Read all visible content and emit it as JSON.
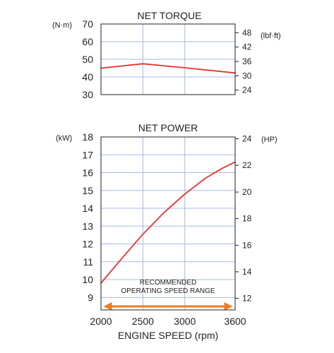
{
  "colors": {
    "grid": "#a9b8e3",
    "line": "#e8322e",
    "range_arrow": "#f07d1c",
    "plot_background": "#ffffff",
    "border": "#222222",
    "text": "#222222"
  },
  "chart_data": [
    {
      "type": "line",
      "title": "NET TORQUE",
      "xlabel": "",
      "left_unit": "(N·m)",
      "right_unit": "(lbf·ft)",
      "xlim": [
        2000,
        3600
      ],
      "ylim": [
        30,
        70
      ],
      "yticks": [
        30,
        40,
        50,
        60,
        70
      ],
      "right_axis": {
        "ticks": [
          "24",
          "30",
          "36",
          "42",
          "48"
        ],
        "values": [
          32.54,
          40.67,
          48.81,
          56.94,
          65.08
        ]
      },
      "x_gridlines": [
        2500,
        3000,
        3600
      ],
      "y_gridlines": [
        40,
        50,
        60
      ],
      "series": [
        {
          "x": [
            2000,
            2500,
            3000,
            3600
          ],
          "y": [
            45,
            47.5,
            45.2,
            42.3
          ]
        }
      ]
    },
    {
      "type": "line",
      "title": "NET POWER",
      "xlabel": "ENGINE SPEED (rpm)",
      "left_unit": "(kW)",
      "right_unit": "(HP)",
      "xlim": [
        2000,
        3600
      ],
      "xticks": [
        2000,
        2500,
        3000,
        3600
      ],
      "ylim": [
        8.3,
        18
      ],
      "yticks": [
        9,
        10,
        11,
        12,
        13,
        14,
        15,
        16,
        17,
        18
      ],
      "right_axis": {
        "ticks": [
          "12",
          "14",
          "16",
          "18",
          "20",
          "22",
          "24"
        ],
        "values": [
          8.95,
          10.44,
          11.93,
          13.42,
          14.91,
          16.41,
          17.9
        ]
      },
      "x_gridlines": [
        2500,
        3000
      ],
      "y_gridlines": [
        9,
        10,
        11,
        12,
        13,
        14,
        15,
        16,
        17
      ],
      "series": [
        {
          "x": [
            2000,
            2250,
            2500,
            2750,
            3000,
            3250,
            3450,
            3600
          ],
          "y": [
            9.8,
            11.2,
            12.55,
            13.75,
            14.8,
            15.7,
            16.25,
            16.6
          ]
        }
      ],
      "annotation": {
        "lines": [
          "RECOMMENDED",
          "OPERATING SPEED RANGE"
        ],
        "range": [
          2000,
          3600
        ],
        "y": 8.5
      }
    }
  ]
}
